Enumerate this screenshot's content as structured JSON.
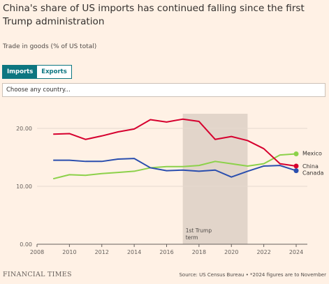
{
  "header": {
    "title": "China's share of US imports has continued falling since the first Trump administration",
    "subtitle": "Trade in goods (% of US total)"
  },
  "controls": {
    "imports_label": "Imports",
    "exports_label": "Exports",
    "country_placeholder": "Choose any country..."
  },
  "footer": {
    "logo": "FINANCIAL TIMES",
    "source": "Source: US Census Bureau • *2024 figures are to November"
  },
  "colors": {
    "mexico": "#8cd14a",
    "china": "#d6002e",
    "canada": "#2a4eae",
    "shade": "#e2d5ca"
  },
  "chart_data": {
    "type": "line",
    "x": [
      2009,
      2010,
      2011,
      2012,
      2013,
      2014,
      2015,
      2016,
      2017,
      2018,
      2019,
      2020,
      2021,
      2022,
      2023,
      2024
    ],
    "xlim": [
      2008,
      2024
    ],
    "ylim": [
      0,
      20
    ],
    "xticks": [
      "2008",
      "2010",
      "2012",
      "2014",
      "2016",
      "2018",
      "2020",
      "2022",
      "2024"
    ],
    "yticks": [
      "0.00",
      "10.00",
      "20.00"
    ],
    "series": [
      {
        "name": "Mexico",
        "color": "#8cd14a",
        "values": [
          11.3,
          12.0,
          11.9,
          12.2,
          12.4,
          12.6,
          13.2,
          13.4,
          13.4,
          13.6,
          14.3,
          13.9,
          13.5,
          13.9,
          15.4,
          15.6
        ]
      },
      {
        "name": "China",
        "color": "#d6002e",
        "values": [
          19.0,
          19.1,
          18.1,
          18.7,
          19.4,
          19.9,
          21.5,
          21.1,
          21.6,
          21.2,
          18.1,
          18.6,
          17.9,
          16.5,
          13.9,
          13.5
        ]
      },
      {
        "name": "Canada",
        "color": "#2a4eae",
        "values": [
          14.5,
          14.5,
          14.3,
          14.3,
          14.7,
          14.8,
          13.2,
          12.7,
          12.8,
          12.6,
          12.8,
          11.6,
          12.6,
          13.5,
          13.6,
          12.7
        ]
      }
    ],
    "annotations": [
      {
        "label": "1st Trump term",
        "x_start": 2017,
        "x_end": 2021
      }
    ],
    "grid": true
  }
}
